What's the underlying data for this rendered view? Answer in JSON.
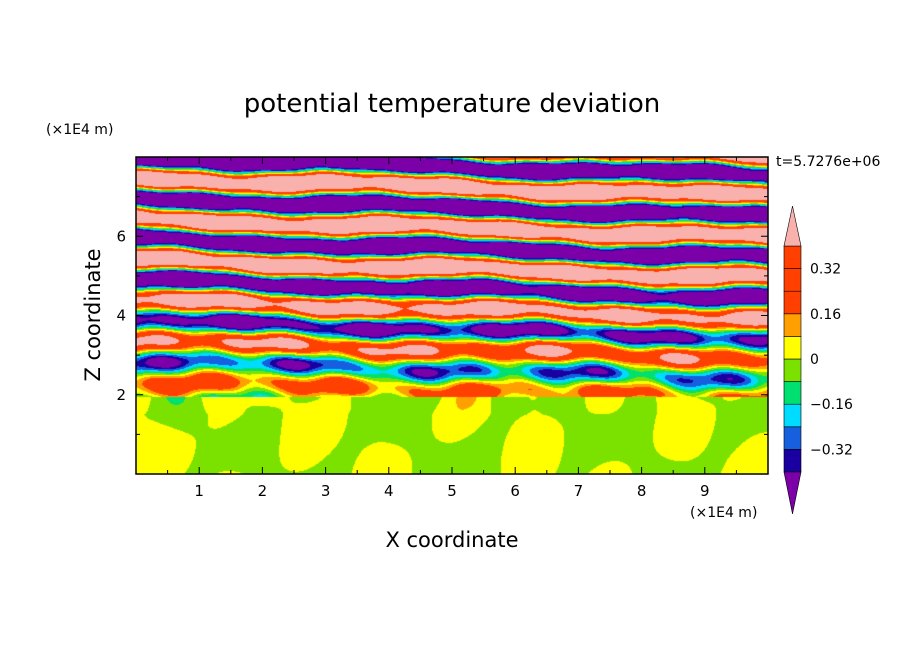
{
  "chart_data": {
    "type": "heatmap",
    "title": "potential temperature deviation",
    "xlabel": "X coordinate",
    "ylabel": "Z coordinate",
    "x_unit": "(×1E4 m)",
    "y_unit": "(×1E4 m)",
    "time_label": "t=5.7276e+06",
    "xlim": [
      0,
      10
    ],
    "ylim": [
      0,
      8
    ],
    "x_ticks": [
      1,
      2,
      3,
      4,
      5,
      6,
      7,
      8,
      9
    ],
    "y_ticks": [
      2,
      4,
      6
    ],
    "colorbar": {
      "levels": [
        -0.48,
        -0.4,
        -0.32,
        -0.24,
        -0.16,
        -0.08,
        0,
        0.08,
        0.16,
        0.24,
        0.32,
        0.4,
        0.48
      ],
      "tick_labels": [
        "0.32",
        "0.16",
        "0",
        "−0.16",
        "−0.32"
      ],
      "tick_values": [
        0.32,
        0.16,
        0,
        -0.16,
        -0.32
      ],
      "colors": [
        "#7b00a8",
        "#1a00a0",
        "#1660e0",
        "#00dcff",
        "#00e070",
        "#7be200",
        "#ffff00",
        "#ffa000",
        "#ff4000",
        "#f9b1ad"
      ],
      "under_color": "#7b00a8",
      "over_color": "#f9b1ad"
    }
  }
}
